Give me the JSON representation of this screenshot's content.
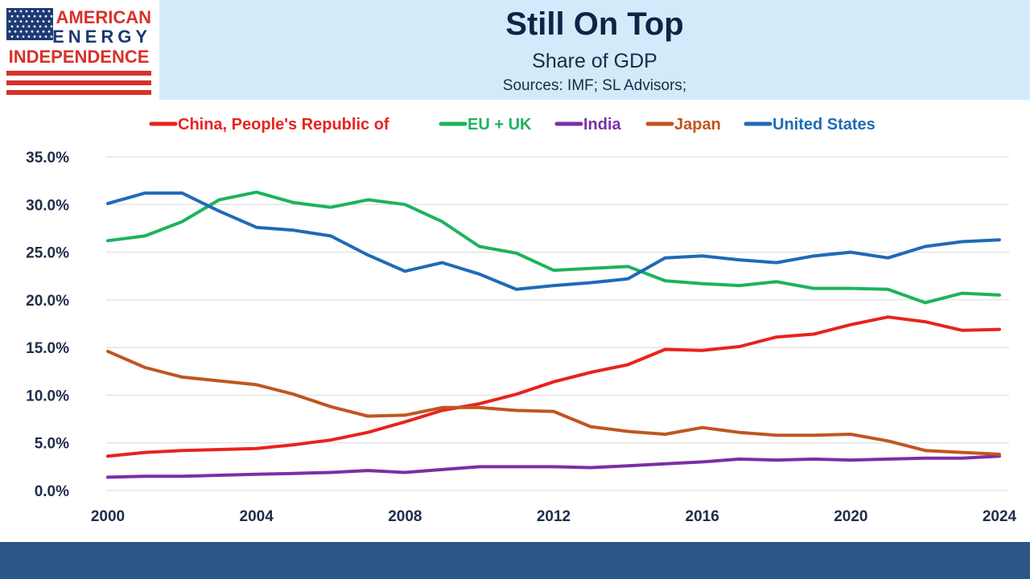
{
  "logo": {
    "line1": "AMERICAN",
    "line2": "ENERGY",
    "line3": "INDEPENDENCE",
    "icon": "us-flag-icon",
    "colors": {
      "red": "#d8312b",
      "blue": "#1d3a73"
    }
  },
  "header": {
    "title": "Still On Top",
    "subtitle": "Share of GDP",
    "sources": "Sources: IMF; SL Advisors;"
  },
  "chart_data": {
    "type": "line",
    "x": [
      2000,
      2001,
      2002,
      2003,
      2004,
      2005,
      2006,
      2007,
      2008,
      2009,
      2010,
      2011,
      2012,
      2013,
      2014,
      2015,
      2016,
      2017,
      2018,
      2019,
      2020,
      2021,
      2022,
      2023,
      2024
    ],
    "x_ticks": [
      2000,
      2004,
      2008,
      2012,
      2016,
      2020,
      2024
    ],
    "x_tick_labels": [
      "2000",
      "2004",
      "2008",
      "2012",
      "2016",
      "2020",
      "2024"
    ],
    "ylim": [
      0,
      35
    ],
    "y_ticks": [
      0,
      5,
      10,
      15,
      20,
      25,
      30,
      35
    ],
    "y_tick_labels": [
      "0.0%",
      "5.0%",
      "10.0%",
      "15.0%",
      "20.0%",
      "25.0%",
      "30.0%",
      "35.0%"
    ],
    "grid": true,
    "legend_position": "top",
    "series": [
      {
        "name": "China, People's Republic of",
        "color": "#e8231e",
        "values": [
          3.6,
          4.0,
          4.2,
          4.3,
          4.4,
          4.8,
          5.3,
          6.1,
          7.2,
          8.4,
          9.1,
          10.1,
          11.4,
          12.4,
          13.2,
          14.8,
          14.7,
          15.1,
          16.1,
          16.4,
          17.4,
          18.2,
          17.7,
          16.8,
          16.9
        ]
      },
      {
        "name": "EU + UK",
        "color": "#1cb35d",
        "values": [
          26.2,
          26.7,
          28.2,
          30.5,
          31.3,
          30.2,
          29.7,
          30.5,
          30.0,
          28.2,
          25.6,
          24.9,
          23.1,
          23.3,
          23.5,
          22.0,
          21.7,
          21.5,
          21.9,
          21.2,
          21.2,
          21.1,
          19.7,
          20.7,
          20.5
        ]
      },
      {
        "name": "India",
        "color": "#7a2fa6",
        "values": [
          1.4,
          1.5,
          1.5,
          1.6,
          1.7,
          1.8,
          1.9,
          2.1,
          1.9,
          2.2,
          2.5,
          2.5,
          2.5,
          2.4,
          2.6,
          2.8,
          3.0,
          3.3,
          3.2,
          3.3,
          3.2,
          3.3,
          3.4,
          3.4,
          3.6
        ]
      },
      {
        "name": "Japan",
        "color": "#c0561f",
        "values": [
          14.6,
          12.9,
          11.9,
          11.5,
          11.1,
          10.1,
          8.8,
          7.8,
          7.9,
          8.7,
          8.7,
          8.4,
          8.3,
          6.7,
          6.2,
          5.9,
          6.6,
          6.1,
          5.8,
          5.8,
          5.9,
          5.2,
          4.2,
          4.0,
          3.8
        ]
      },
      {
        "name": "United States",
        "color": "#1f6bb5",
        "values": [
          30.1,
          31.2,
          31.2,
          29.3,
          27.6,
          27.3,
          26.7,
          24.7,
          23.0,
          23.9,
          22.7,
          21.1,
          21.5,
          21.8,
          22.2,
          24.4,
          24.6,
          24.2,
          23.9,
          24.6,
          25.0,
          24.4,
          25.6,
          26.1,
          26.3
        ]
      }
    ]
  }
}
